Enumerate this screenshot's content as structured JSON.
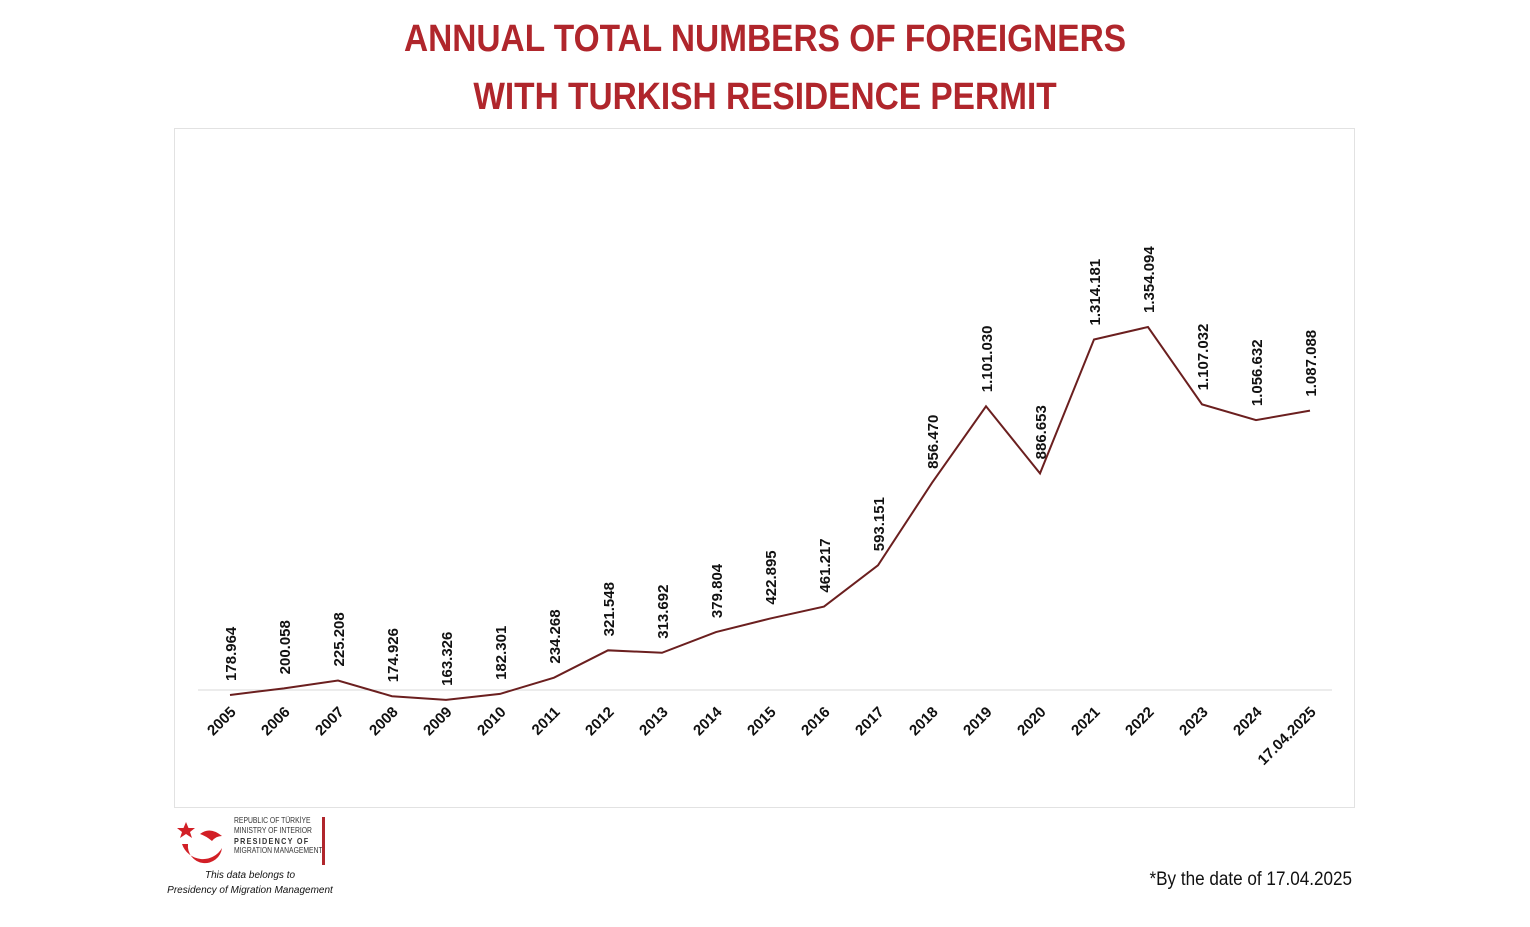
{
  "chart_data": {
    "type": "line",
    "title_line1": "ANNUAL TOTAL NUMBERS OF FOREIGNERS",
    "title_line2": "WITH TURKISH RESIDENCE PERMIT",
    "categories": [
      "2005",
      "2006",
      "2007",
      "2008",
      "2009",
      "2010",
      "2011",
      "2012",
      "2013",
      "2014",
      "2015",
      "2016",
      "2017",
      "2018",
      "2019",
      "2020",
      "2021",
      "2022",
      "2023",
      "2024",
      "17.04.2025"
    ],
    "values": [
      178964,
      200058,
      225208,
      174926,
      163326,
      182301,
      234268,
      321548,
      313692,
      379804,
      422895,
      461217,
      593151,
      856470,
      1101030,
      886653,
      1314181,
      1354094,
      1107032,
      1056632,
      1087088
    ],
    "labels": [
      "178.964",
      "200.058",
      "225.208",
      "174.926",
      "163.326",
      "182.301",
      "234.268",
      "321.548",
      "313.692",
      "379.804",
      "422.895",
      "461.217",
      "593.151",
      "856.470",
      "1.101.030",
      "886.653",
      "1.314.181",
      "1.354.094",
      "1.107.032",
      "1.056.632",
      "1.087.088"
    ],
    "line_color": "#6b1f1f",
    "title_color": "#b0262c",
    "ylim": [
      0,
      1600000
    ],
    "grid": false,
    "legend": "none"
  },
  "footnote": "*By the date of 17.04.2025",
  "logo": {
    "line1": "REPUBLIC OF TÜRKİYE",
    "line2": "MINISTRY OF INTERIOR",
    "line3": "PRESIDENCY OF",
    "line4": "MIGRATION MANAGEMENT",
    "caption1": "This data belongs to",
    "caption2": "Presidency of Migration Management"
  }
}
